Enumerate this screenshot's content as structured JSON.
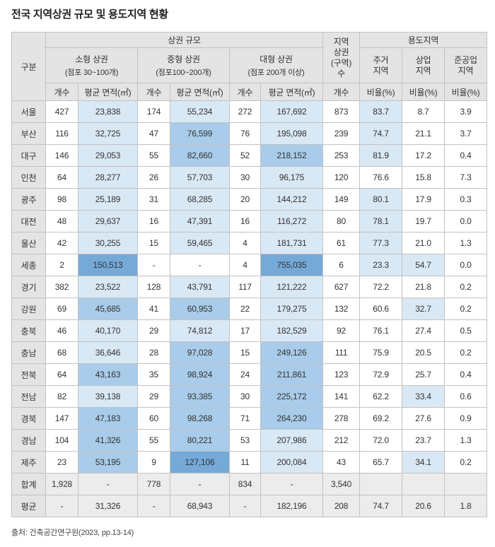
{
  "page": {
    "title": "전국 지역상권 규모 및 용도지역 현황",
    "source": "출처: 건축공간연구원(2023, pp.13-14)"
  },
  "colors": {
    "header_bg": "#e4e4e4",
    "summary_bg": "#ececec",
    "shade_light": "#d9e8f5",
    "shade_medium": "#a8cce9",
    "shade_dark": "#74a9d8",
    "border": "#c2c2c2"
  },
  "table": {
    "header": {
      "gubun": "구분",
      "group_size": "상권 규모",
      "district_count": "지역\n상권\n(구역)\n수",
      "group_zone": "용도지역",
      "small_title": "소형 상권",
      "small_sub": "(점포 30~100개)",
      "medium_title": "중형 상권",
      "medium_sub": "(점포100~200개)",
      "large_title": "대형 상권",
      "large_sub": "(점포 200개 이상)",
      "count_label": "개수",
      "area_label": "평균 면적(㎡)",
      "res_label": "주거\n지역",
      "com_label": "상업\n지역",
      "semi_label": "준공업\n지역",
      "ratio_label": "비율(%)"
    },
    "rows": [
      {
        "region": "서울",
        "values": [
          "427",
          "23,838",
          "174",
          "55,234",
          "272",
          "167,692",
          "873",
          "83.7",
          "8.7",
          "3.9"
        ],
        "shades": [
          0,
          1,
          0,
          1,
          0,
          1,
          0,
          1,
          0,
          0
        ]
      },
      {
        "region": "부산",
        "values": [
          "116",
          "32,725",
          "47",
          "76,599",
          "76",
          "195,098",
          "239",
          "74.7",
          "21.1",
          "3.7"
        ],
        "shades": [
          0,
          1,
          0,
          2,
          0,
          1,
          0,
          1,
          0,
          0
        ]
      },
      {
        "region": "대구",
        "values": [
          "146",
          "29,053",
          "55",
          "82,660",
          "52",
          "218,152",
          "253",
          "81.9",
          "17.2",
          "0.4"
        ],
        "shades": [
          0,
          1,
          0,
          2,
          0,
          2,
          0,
          1,
          0,
          0
        ]
      },
      {
        "region": "인천",
        "values": [
          "64",
          "28,277",
          "26",
          "57,703",
          "30",
          "96,175",
          "120",
          "76.6",
          "15.8",
          "7.3"
        ],
        "shades": [
          0,
          1,
          0,
          1,
          0,
          1,
          0,
          0,
          0,
          0
        ]
      },
      {
        "region": "광주",
        "values": [
          "98",
          "25,189",
          "31",
          "68,285",
          "20",
          "144,212",
          "149",
          "80.1",
          "17.9",
          "0.3"
        ],
        "shades": [
          0,
          1,
          0,
          1,
          0,
          1,
          0,
          1,
          0,
          0
        ]
      },
      {
        "region": "대전",
        "values": [
          "48",
          "29,637",
          "16",
          "47,391",
          "16",
          "116,272",
          "80",
          "78.1",
          "19.7",
          "0.0"
        ],
        "shades": [
          0,
          1,
          0,
          1,
          0,
          1,
          0,
          1,
          0,
          0
        ]
      },
      {
        "region": "울산",
        "values": [
          "42",
          "30,255",
          "15",
          "59,465",
          "4",
          "181,731",
          "61",
          "77.3",
          "21.0",
          "1.3"
        ],
        "shades": [
          0,
          1,
          0,
          1,
          0,
          1,
          0,
          1,
          0,
          0
        ]
      },
      {
        "region": "세종",
        "values": [
          "2",
          "150,513",
          "-",
          "-",
          "4",
          "755,035",
          "6",
          "23.3",
          "54.7",
          "0.0"
        ],
        "shades": [
          0,
          3,
          0,
          0,
          0,
          3,
          0,
          1,
          1,
          0
        ]
      },
      {
        "region": "경기",
        "values": [
          "382",
          "23,522",
          "128",
          "43,791",
          "117",
          "121,222",
          "627",
          "72.2",
          "21.8",
          "0.2"
        ],
        "shades": [
          0,
          1,
          0,
          1,
          0,
          1,
          0,
          0,
          0,
          0
        ]
      },
      {
        "region": "강원",
        "values": [
          "69",
          "45,685",
          "41",
          "60,953",
          "22",
          "179,275",
          "132",
          "60.6",
          "32.7",
          "0.2"
        ],
        "shades": [
          0,
          2,
          0,
          2,
          0,
          1,
          0,
          0,
          1,
          0
        ]
      },
      {
        "region": "충북",
        "values": [
          "46",
          "40,170",
          "29",
          "74,812",
          "17",
          "182,529",
          "92",
          "76.1",
          "27.4",
          "0.5"
        ],
        "shades": [
          0,
          1,
          0,
          1,
          0,
          1,
          0,
          0,
          0,
          0
        ]
      },
      {
        "region": "충남",
        "values": [
          "68",
          "36,646",
          "28",
          "97,028",
          "15",
          "249,126",
          "111",
          "75.9",
          "20.5",
          "0.2"
        ],
        "shades": [
          0,
          1,
          0,
          2,
          0,
          2,
          0,
          0,
          0,
          0
        ]
      },
      {
        "region": "전북",
        "values": [
          "64",
          "43,163",
          "35",
          "98,924",
          "24",
          "211,861",
          "123",
          "72.9",
          "25.7",
          "0.4"
        ],
        "shades": [
          0,
          2,
          0,
          2,
          0,
          2,
          0,
          0,
          0,
          0
        ]
      },
      {
        "region": "전남",
        "values": [
          "82",
          "39,138",
          "29",
          "93,385",
          "30",
          "225,172",
          "141",
          "62.2",
          "33.4",
          "0.6"
        ],
        "shades": [
          0,
          1,
          0,
          2,
          0,
          2,
          0,
          0,
          1,
          0
        ]
      },
      {
        "region": "경북",
        "values": [
          "147",
          "47,183",
          "60",
          "98,268",
          "71",
          "264,230",
          "278",
          "69.2",
          "27.6",
          "0.9"
        ],
        "shades": [
          0,
          2,
          0,
          2,
          0,
          2,
          0,
          0,
          0,
          0
        ]
      },
      {
        "region": "경남",
        "values": [
          "104",
          "41,326",
          "55",
          "80,221",
          "53",
          "207,986",
          "212",
          "72.0",
          "23.7",
          "1.3"
        ],
        "shades": [
          0,
          2,
          0,
          2,
          0,
          1,
          0,
          0,
          0,
          0
        ]
      },
      {
        "region": "제주",
        "values": [
          "23",
          "53,195",
          "9",
          "127,106",
          "11",
          "200,084",
          "43",
          "65.7",
          "34.1",
          "0.2"
        ],
        "shades": [
          0,
          2,
          0,
          3,
          0,
          1,
          0,
          0,
          1,
          0
        ]
      }
    ],
    "summary_rows": [
      {
        "region": "합계",
        "values": [
          "1,928",
          "-",
          "778",
          "-",
          "834",
          "-",
          "3,540",
          "",
          "",
          ""
        ],
        "shades": [
          0,
          0,
          0,
          0,
          0,
          0,
          0,
          0,
          0,
          0
        ]
      },
      {
        "region": "평균",
        "values": [
          "-",
          "31,326",
          "-",
          "68,943",
          "-",
          "182,196",
          "208",
          "74.7",
          "20.6",
          "1.8"
        ],
        "shades": [
          0,
          0,
          0,
          0,
          0,
          0,
          0,
          0,
          0,
          0
        ]
      }
    ]
  }
}
